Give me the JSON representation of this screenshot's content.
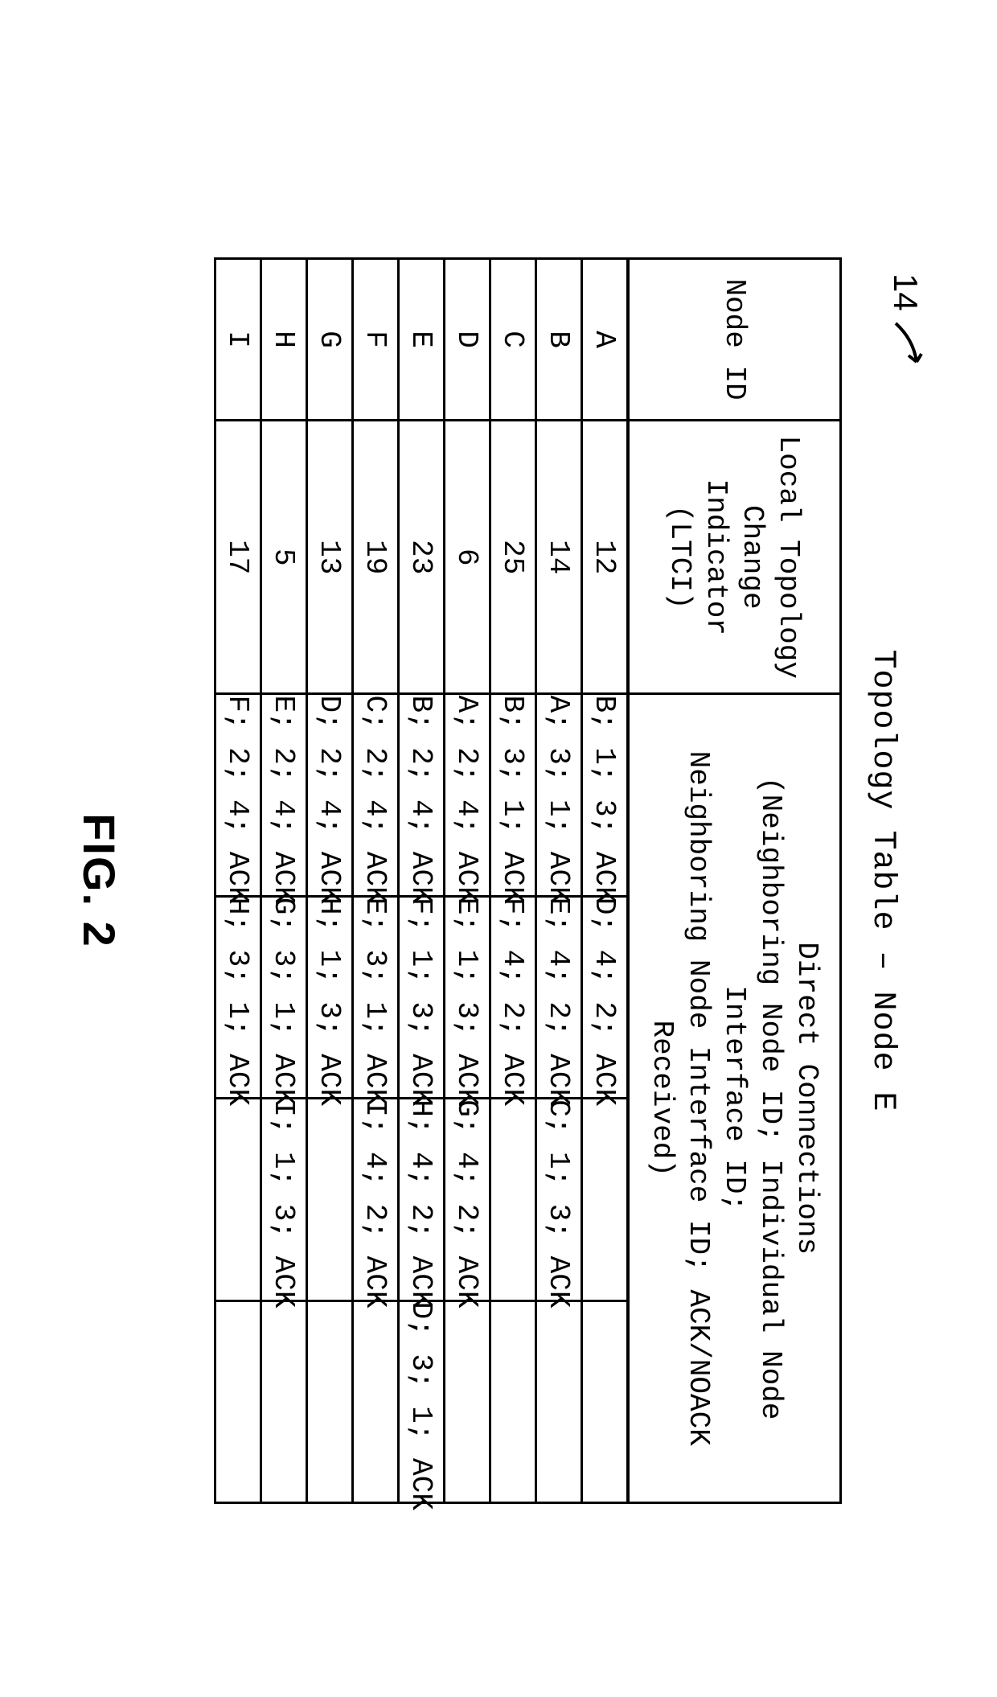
{
  "figure": {
    "ref_number": "14",
    "title": "Topology Table – Node E",
    "caption": "FIG. 2"
  },
  "table": {
    "type": "table",
    "border_color": "#000000",
    "background_color": "#ffffff",
    "font_family": "Courier New",
    "header_fontsize_pt": 28,
    "cell_fontsize_pt": 28,
    "headers": {
      "node_id": "Node ID",
      "ltci_line1": "Local Topology",
      "ltci_line2": "Change Indicator",
      "ltci_line3": "(LTCI)",
      "conns_line1": "Direct Connections",
      "conns_line2": "(Neighboring Node ID;  Individual Node Interface ID;",
      "conns_line3": "Neighboring Node Interface ID;  ACK/NOACK Received)"
    },
    "column_widths_pct": [
      13,
      22,
      16.25,
      16.25,
      16.25,
      16.25
    ],
    "rows": [
      {
        "id": "A",
        "ltci": "12",
        "conns": [
          "B; 1; 3; ACK",
          "D; 4; 2; ACK",
          "",
          ""
        ]
      },
      {
        "id": "B",
        "ltci": "14",
        "conns": [
          "A; 3; 1; ACK",
          "E; 4; 2; ACK",
          "C; 1; 3; ACK",
          ""
        ]
      },
      {
        "id": "C",
        "ltci": "25",
        "conns": [
          "B; 3; 1; ACK",
          "F; 4; 2; ACK",
          "",
          ""
        ]
      },
      {
        "id": "D",
        "ltci": "6",
        "conns": [
          "A; 2; 4; ACK",
          "E; 1; 3; ACK",
          "G; 4; 2; ACK",
          ""
        ]
      },
      {
        "id": "E",
        "ltci": "23",
        "conns": [
          "B; 2; 4; ACK",
          "F; 1; 3; ACK",
          "H; 4; 2; ACK",
          "D; 3; 1; ACK"
        ]
      },
      {
        "id": "F",
        "ltci": "19",
        "conns": [
          "C; 2; 4; ACK",
          "E; 3; 1; ACK",
          "I; 4; 2; ACK",
          ""
        ]
      },
      {
        "id": "G",
        "ltci": "13",
        "conns": [
          "D; 2; 4; ACK",
          "H; 1; 3; ACK",
          "",
          ""
        ]
      },
      {
        "id": "H",
        "ltci": "5",
        "conns": [
          "E; 2; 4; ACK",
          "G; 3; 1; ACK",
          "I; 1; 3; ACK",
          ""
        ]
      },
      {
        "id": "I",
        "ltci": "17",
        "conns": [
          "F; 2; 4; ACK",
          "H; 3; 1; ACK",
          "",
          ""
        ]
      }
    ]
  }
}
